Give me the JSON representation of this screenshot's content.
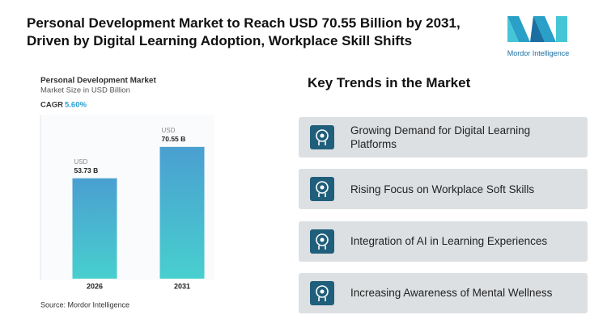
{
  "header": {
    "title": "Personal Development Market to Reach USD 70.55 Billion by 2031, Driven by Digital Learning Adoption, Workplace Skill Shifts",
    "logo": "Mordor Intelligence"
  },
  "chart_data": {
    "type": "bar",
    "title": "Personal Development Market",
    "subtitle": "Market Size in USD Billion",
    "cagr_label": "CAGR",
    "cagr_value": "5.60%",
    "categories": [
      "2026",
      "2031"
    ],
    "values": [
      53.73,
      70.55
    ],
    "value_labels": [
      "53.73 B",
      "70.55 B"
    ],
    "unit_label": "USD",
    "colors": [
      "#4a9fd0",
      "#48cfcf"
    ],
    "ylim": [
      0,
      80
    ],
    "source": "Source: Mordor Intelligence"
  },
  "key_trends": {
    "title": "Key Trends in the Market",
    "items": [
      "Growing Demand for Digital Learning Platforms",
      "Rising Focus on Workplace Soft Skills",
      "Integration of AI in Learning Experiences",
      "Increasing Awareness of Mental Wellness"
    ]
  }
}
